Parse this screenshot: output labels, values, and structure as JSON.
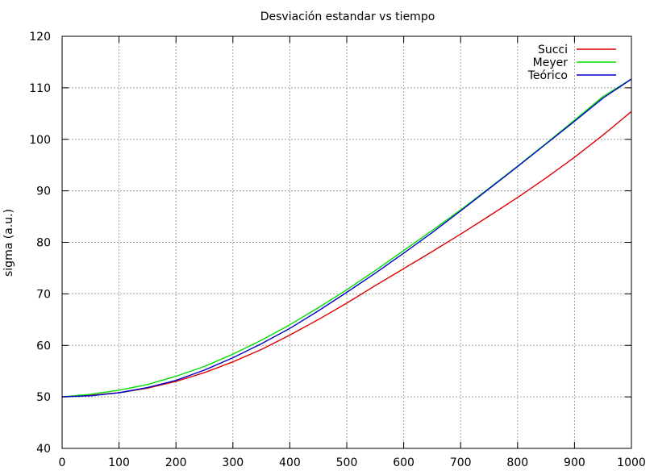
{
  "chart_data": {
    "type": "line",
    "title": "Desviación estandar vs tiempo",
    "xlabel": "",
    "ylabel": "sigma (a.u.)",
    "xlim": [
      0,
      1000
    ],
    "ylim": [
      40,
      120
    ],
    "xticks": [
      "0",
      "100",
      "200",
      "300",
      "400",
      "500",
      "600",
      "700",
      "800",
      "900",
      "1000"
    ],
    "yticks": [
      "40",
      "50",
      "60",
      "70",
      "80",
      "90",
      "100",
      "110",
      "120"
    ],
    "grid": true,
    "legend_position": "top-right",
    "series": [
      {
        "name": "Succi",
        "color": "#e00000",
        "x": [
          0,
          50,
          100,
          150,
          200,
          250,
          300,
          350,
          400,
          450,
          500,
          550,
          600,
          650,
          700,
          750,
          800,
          850,
          900,
          950,
          1000
        ],
        "values": [
          50,
          50.3,
          50.8,
          51.7,
          53.0,
          54.7,
          56.8,
          59.2,
          62.0,
          65.0,
          68.2,
          71.6,
          74.9,
          78.2,
          81.6,
          85.1,
          88.7,
          92.5,
          96.5,
          100.8,
          105.4
        ]
      },
      {
        "name": "Meyer",
        "color": "#00dd00",
        "x": [
          0,
          50,
          100,
          150,
          200,
          250,
          300,
          350,
          400,
          450,
          500,
          550,
          600,
          650,
          700,
          750,
          800,
          850,
          900,
          950,
          1000
        ],
        "values": [
          50,
          50.5,
          51.3,
          52.4,
          54.0,
          55.9,
          58.3,
          61.0,
          64.0,
          67.3,
          70.8,
          74.5,
          78.4,
          82.3,
          86.3,
          90.5,
          94.8,
          99.2,
          103.7,
          108.3,
          111.7
        ]
      },
      {
        "name": "Teórico",
        "color": "#0000cc",
        "x": [
          0,
          50,
          100,
          150,
          200,
          250,
          300,
          350,
          400,
          450,
          500,
          550,
          600,
          650,
          700,
          750,
          800,
          850,
          900,
          950,
          1000
        ],
        "values": [
          50,
          50.2,
          50.8,
          51.8,
          53.2,
          55.2,
          57.6,
          60.3,
          63.3,
          66.7,
          70.3,
          74.0,
          77.9,
          81.9,
          86.1,
          90.4,
          94.7,
          99.1,
          103.5,
          108.0,
          111.7
        ]
      }
    ]
  }
}
